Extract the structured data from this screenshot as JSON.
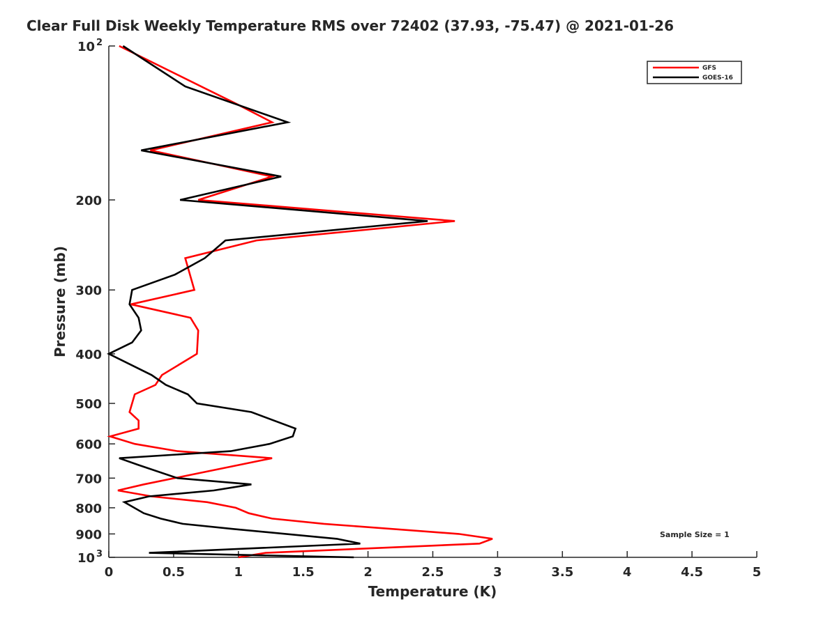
{
  "chart_data": {
    "type": "line",
    "title": "Clear Full Disk Weekly Temperature RMS over 72402 (37.93, -75.47) @ 2021-01-26",
    "xlabel": "Temperature (K)",
    "ylabel": "Pressure (mb)",
    "xlim": [
      0,
      5
    ],
    "ylim": [
      100,
      1000
    ],
    "yscale": "log",
    "yreversed": true,
    "x_ticks": [
      "0",
      "0.5",
      "1",
      "1.5",
      "2",
      "2.5",
      "3",
      "3.5",
      "4",
      "4.5",
      "5"
    ],
    "x_tick_values": [
      0,
      0.5,
      1,
      1.5,
      2,
      2.5,
      3,
      3.5,
      4,
      4.5,
      5
    ],
    "y_ticks": [
      {
        "value": 100,
        "base": "10",
        "exp": "2"
      },
      {
        "value": 200,
        "label": "200"
      },
      {
        "value": 300,
        "label": "300"
      },
      {
        "value": 400,
        "label": "400"
      },
      {
        "value": 500,
        "label": "500"
      },
      {
        "value": 600,
        "label": "600"
      },
      {
        "value": 700,
        "label": "700"
      },
      {
        "value": 800,
        "label": "800"
      },
      {
        "value": 900,
        "label": "900"
      },
      {
        "value": 1000,
        "base": "10",
        "exp": "3"
      }
    ],
    "grid": false,
    "legend_position": "top-right",
    "annotation": "Sample Size = 1",
    "series": [
      {
        "name": "GFS",
        "color": "#ff0000",
        "points": [
          [
            0.08,
            100
          ],
          [
            0.99,
            130
          ],
          [
            1.26,
            141
          ],
          [
            0.32,
            160
          ],
          [
            1.26,
            180
          ],
          [
            0.69,
            200
          ],
          [
            2.67,
            220
          ],
          [
            1.14,
            240
          ],
          [
            0.59,
            260
          ],
          [
            0.66,
            300
          ],
          [
            0.17,
            320
          ],
          [
            0.63,
            340
          ],
          [
            0.69,
            360
          ],
          [
            0.68,
            400
          ],
          [
            0.41,
            440
          ],
          [
            0.36,
            460
          ],
          [
            0.2,
            480
          ],
          [
            0.16,
            520
          ],
          [
            0.23,
            540
          ],
          [
            0.23,
            560
          ],
          [
            0.01,
            580
          ],
          [
            0.2,
            600
          ],
          [
            0.53,
            620
          ],
          [
            1.26,
            640
          ],
          [
            0.27,
            720
          ],
          [
            0.07,
            740
          ],
          [
            0.33,
            760
          ],
          [
            0.76,
            780
          ],
          [
            0.98,
            800
          ],
          [
            1.08,
            820
          ],
          [
            1.26,
            840
          ],
          [
            1.66,
            860
          ],
          [
            2.7,
            900
          ],
          [
            2.96,
            920
          ],
          [
            2.86,
            940
          ],
          [
            1.21,
            980
          ],
          [
            1.0,
            1000
          ]
        ]
      },
      {
        "name": "GOES-16",
        "color": "#000000",
        "points": [
          [
            0.11,
            100
          ],
          [
            0.59,
            120
          ],
          [
            1.38,
            141
          ],
          [
            0.25,
            160
          ],
          [
            1.33,
            180
          ],
          [
            0.55,
            200
          ],
          [
            2.46,
            220
          ],
          [
            0.9,
            240
          ],
          [
            0.74,
            260
          ],
          [
            0.51,
            280
          ],
          [
            0.18,
            300
          ],
          [
            0.16,
            320
          ],
          [
            0.23,
            340
          ],
          [
            0.25,
            360
          ],
          [
            0.18,
            380
          ],
          [
            0.0,
            400
          ],
          [
            0.33,
            440
          ],
          [
            0.44,
            460
          ],
          [
            0.61,
            480
          ],
          [
            0.68,
            500
          ],
          [
            1.1,
            520
          ],
          [
            1.44,
            560
          ],
          [
            1.42,
            580
          ],
          [
            1.24,
            600
          ],
          [
            0.94,
            620
          ],
          [
            0.08,
            640
          ],
          [
            0.23,
            660
          ],
          [
            0.53,
            700
          ],
          [
            1.1,
            720
          ],
          [
            0.81,
            740
          ],
          [
            0.31,
            760
          ],
          [
            0.12,
            780
          ],
          [
            0.27,
            820
          ],
          [
            0.4,
            840
          ],
          [
            0.57,
            860
          ],
          [
            0.96,
            880
          ],
          [
            1.76,
            920
          ],
          [
            1.94,
            940
          ],
          [
            0.31,
            980
          ],
          [
            1.89,
            1000
          ]
        ]
      }
    ]
  }
}
